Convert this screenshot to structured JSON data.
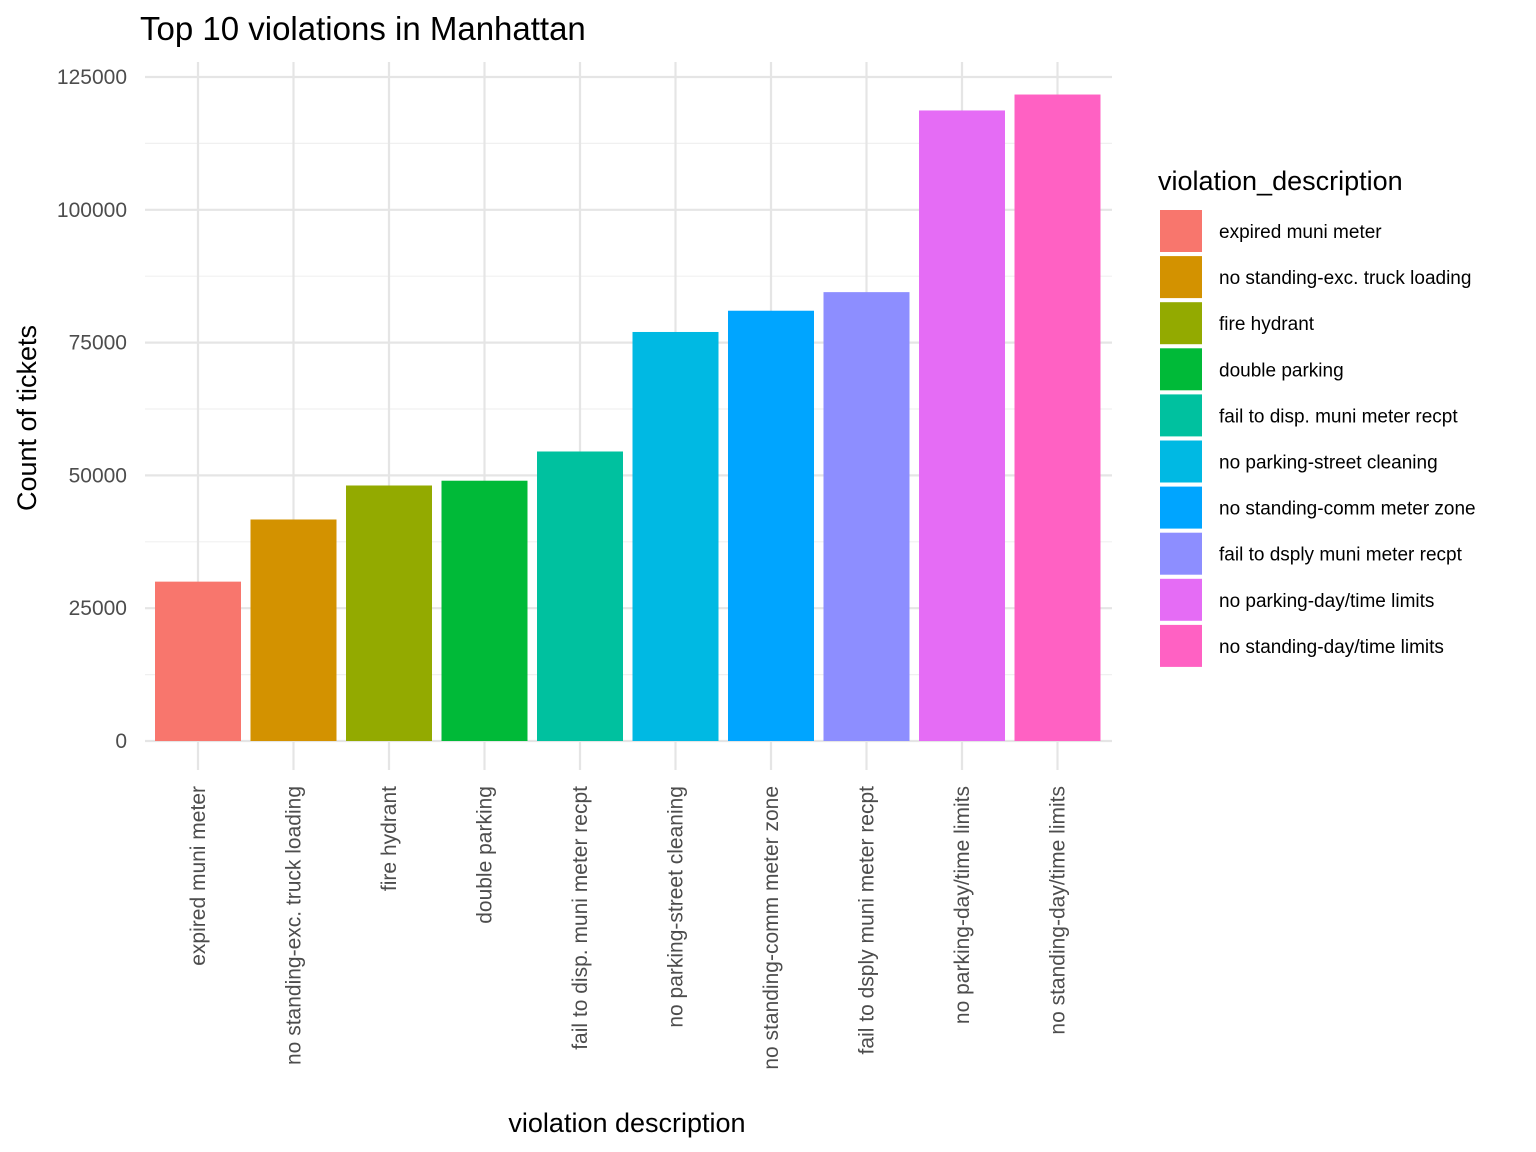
{
  "chart_data": {
    "type": "bar",
    "title": "Top 10 violations in Manhattan",
    "xlabel": "violation description",
    "ylabel": "Count of tickets",
    "ylim": [
      0,
      125000
    ],
    "yticks": [
      "0",
      "25000",
      "50000",
      "75000",
      "100000",
      "125000"
    ],
    "grid": true,
    "legend": {
      "title": "violation_description",
      "placement": "right"
    },
    "categories": [
      "expired muni meter",
      "no standing-exc. truck loading",
      "fire hydrant",
      "double parking",
      "fail to disp. muni meter recpt",
      "no parking-street cleaning",
      "no standing-comm meter zone",
      "fail to dsply muni meter recpt",
      "no parking-day/time limits",
      "no standing-day/time limits"
    ],
    "values": [
      30000,
      41700,
      48100,
      49000,
      54500,
      77000,
      81000,
      84500,
      118700,
      121700
    ],
    "colors": [
      "#F8766D",
      "#D39200",
      "#93AA00",
      "#00BA38",
      "#00C19F",
      "#00B9E3",
      "#00A5FF",
      "#8D8EFF",
      "#E56CF5",
      "#FF61C3"
    ]
  }
}
